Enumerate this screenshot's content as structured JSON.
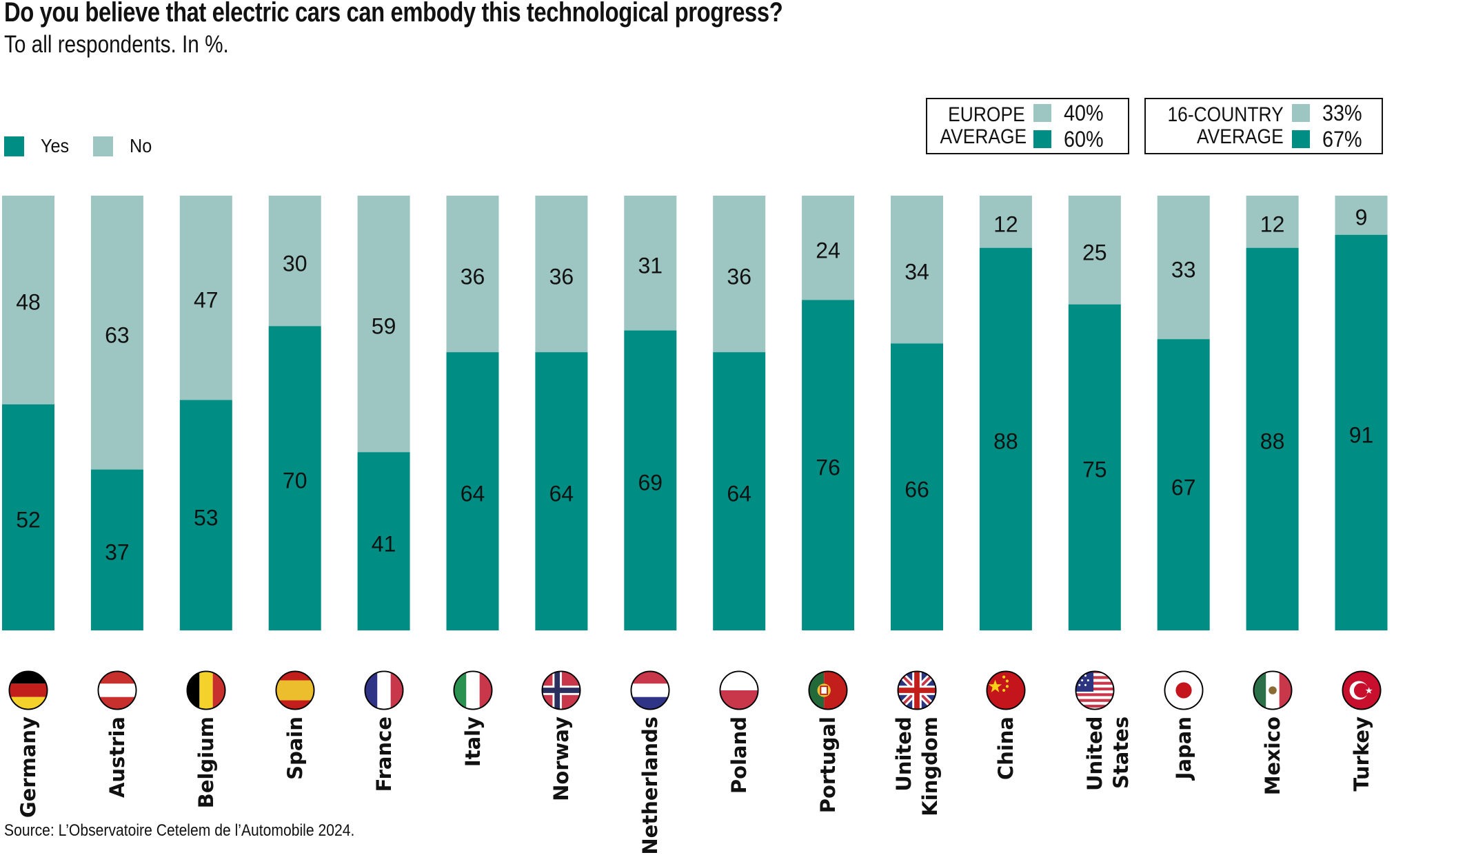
{
  "title": "Do you believe that electric cars can embody this technological progress?",
  "subtitle": "To all respondents. In %.",
  "source": "Source: L’Observatoire Cetelem de l’Automobile 2024.",
  "colors": {
    "yes": "#008e84",
    "no": "#9dc5c2",
    "text": "#111111"
  },
  "legend": [
    {
      "label": "Yes",
      "color": "#008e84"
    },
    {
      "label": "No",
      "color": "#9dc5c2"
    }
  ],
  "averages": [
    {
      "name_line1": "EUROPE",
      "name_line2": "AVERAGE",
      "no": "40%",
      "yes": "60%"
    },
    {
      "name_line1": "16-COUNTRY",
      "name_line2": "AVERAGE",
      "no": "33%",
      "yes": "67%"
    }
  ],
  "chart_data": {
    "type": "bar",
    "stacked": true,
    "title": "Do you believe that electric cars can embody this technological progress?",
    "subtitle": "To all respondents. In %.",
    "xlabel": "",
    "ylabel": "",
    "ylim": [
      0,
      100
    ],
    "grid": false,
    "legend_position": "top-left",
    "categories": [
      "Germany",
      "Austria",
      "Belgium",
      "Spain",
      "France",
      "Italy",
      "Norway",
      "Netherlands",
      "Poland",
      "Portugal",
      "United\nKingdom",
      "China",
      "United States",
      "Japan",
      "Mexico",
      "Turkey"
    ],
    "flags": [
      "germany-flag",
      "austria-flag",
      "belgium-flag",
      "spain-flag",
      "france-flag",
      "italy-flag",
      "norway-flag",
      "netherlands-flag",
      "poland-flag",
      "portugal-flag",
      "uk-flag",
      "china-flag",
      "usa-flag",
      "japan-flag",
      "mexico-flag",
      "turkey-flag"
    ],
    "series": [
      {
        "name": "Yes",
        "values": [
          52,
          37,
          53,
          70,
          41,
          64,
          64,
          69,
          64,
          76,
          66,
          88,
          75,
          67,
          88,
          91
        ]
      },
      {
        "name": "No",
        "values": [
          48,
          63,
          47,
          30,
          59,
          36,
          36,
          31,
          36,
          24,
          34,
          12,
          25,
          33,
          12,
          9
        ]
      }
    ],
    "annotations": [
      "EUROPE AVERAGE: No 40%, Yes 60%",
      "16-COUNTRY AVERAGE: No 33%, Yes 67%"
    ]
  }
}
